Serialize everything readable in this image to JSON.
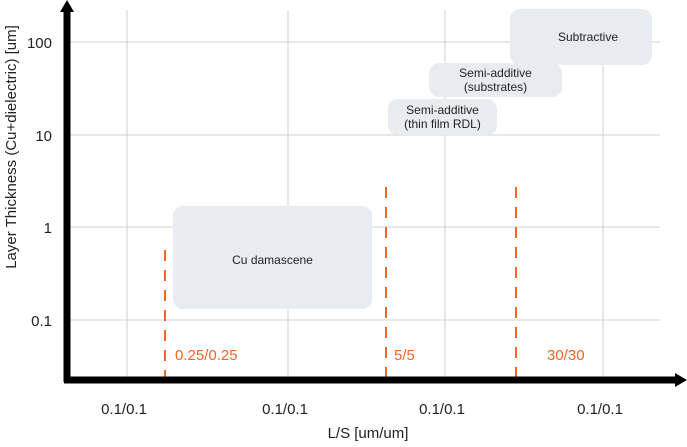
{
  "chart_data": {
    "type": "diagram-chart",
    "xlabel": "L/S [um/um]",
    "ylabel": "Layer Thickness (Cu+dielectric) [um]",
    "y_scale": "log",
    "y_ticks": [
      "100",
      "10",
      "1",
      "0.1"
    ],
    "y_tick_values": [
      100,
      10,
      1,
      0.1
    ],
    "x_ticks": [
      "0.1/0.1",
      "0.1/0.1",
      "0.1/0.1",
      "0.1/0.1"
    ],
    "grid": true,
    "regions": [
      {
        "label": [
          "Cu damascene"
        ],
        "name": "cu-damascene"
      },
      {
        "label": [
          "Semi-additive",
          "(thin film RDL)"
        ],
        "name": "semi-additive-thin-film-rdl"
      },
      {
        "label": [
          "Semi-additive",
          "(substrates)"
        ],
        "name": "semi-additive-substrates"
      },
      {
        "label": [
          "Subtractive"
        ],
        "name": "subtractive"
      }
    ],
    "thresholds": [
      {
        "label": "0.25/0.25"
      },
      {
        "label": "5/5"
      },
      {
        "label": "30/30"
      }
    ],
    "colors": {
      "axis": "#000000",
      "grid": "#d0d0d0",
      "region": "#e8ebef",
      "threshold": "#f26522",
      "text": "#222222"
    }
  }
}
